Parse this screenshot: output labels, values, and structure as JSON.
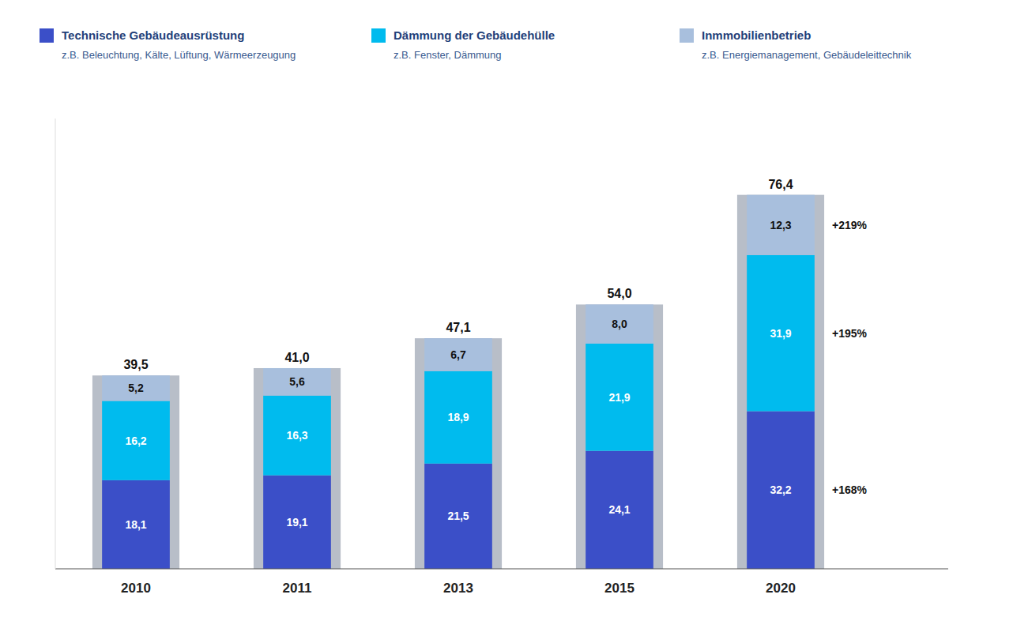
{
  "chart_data": {
    "type": "bar",
    "stacked": true,
    "data_labels": true,
    "tick_labels": "x",
    "categories": [
      "2010",
      "2011",
      "2013",
      "2015",
      "2020"
    ],
    "ylim": [
      0,
      92
    ],
    "series": [
      {
        "name": "Technische Gebäudeausrüstung",
        "description": "z.B. Beleuchtung, Kälte, Lüftung, Wärmeerzeugung",
        "color": "#3B4FC8",
        "values": [
          18.1,
          19.1,
          21.5,
          24.1,
          32.2
        ],
        "value_labels": [
          "18,1",
          "19,1",
          "21,5",
          "24,1",
          "32,2"
        ],
        "annotation": "+168%"
      },
      {
        "name": "Dämmung der Gebäudehülle",
        "description": "z.B. Fenster, Dämmung",
        "color": "#00BBEE",
        "values": [
          16.2,
          16.3,
          18.9,
          21.9,
          31.9
        ],
        "value_labels": [
          "16,2",
          "16,3",
          "18,9",
          "21,9",
          "31,9"
        ],
        "annotation": "+195%"
      },
      {
        "name": "Inmmobilienbetrieb",
        "description": "z.B. Energiemanagement, Gebäudeleittechnik",
        "color": "#A8BFDD",
        "values": [
          5.2,
          5.6,
          6.7,
          8.0,
          12.3
        ],
        "value_labels": [
          "5,2",
          "5,6",
          "6,7",
          "8,0",
          "12,3"
        ],
        "annotation": "+219%"
      }
    ],
    "totals": {
      "color": "#B8BEC8",
      "values": [
        39.5,
        41.0,
        47.1,
        54.0,
        76.4
      ],
      "value_labels": [
        "39,5",
        "41,0",
        "47,1",
        "54,0",
        "76,4"
      ]
    }
  }
}
